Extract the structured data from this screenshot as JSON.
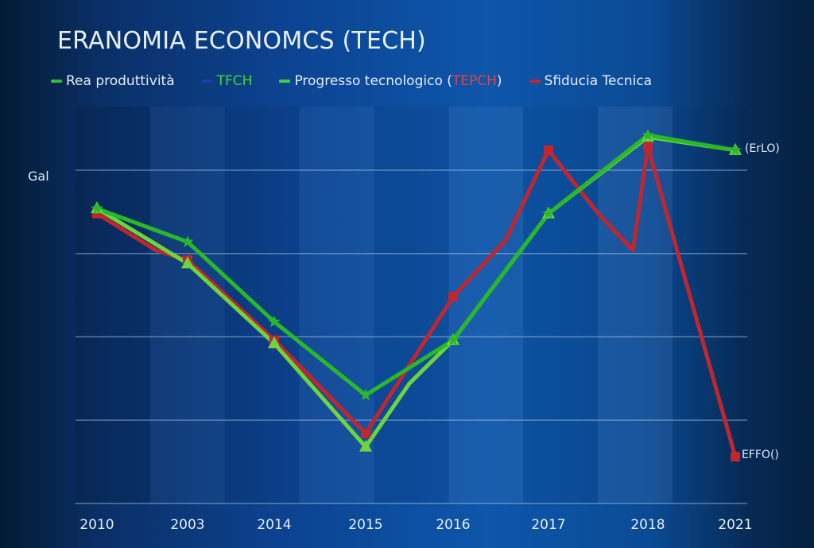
{
  "chart_data": {
    "type": "line",
    "title": "ERANOMIA ECONOMCS (TECH)",
    "xlabel": "",
    "ylabel": "Gal",
    "categories": [
      "2010",
      "2003",
      "2014",
      "2015",
      "2016",
      "2017",
      "2018",
      "2021"
    ],
    "ylim": [
      0,
      100
    ],
    "yticks": [
      0,
      25,
      50,
      75,
      100
    ],
    "grid": true,
    "legend_position": "top-left",
    "legend": [
      {
        "label": "Rea produttività",
        "color": "#2fbf2f"
      },
      {
        "label": "TFCH",
        "color": "#1a3fa8",
        "text_color": "#46d53a"
      },
      {
        "label": "Progresso tecnologico",
        "suffix_paren": "(",
        "suffix_red": "TEPCH",
        "suffix_close": ")",
        "color": "#3ccf3a"
      },
      {
        "label": "Sfiducia Tecnica",
        "color": "#c0262e"
      }
    ],
    "series": [
      {
        "name": "Rea produttività",
        "color": "#6fd43c",
        "marker": "triangle",
        "points": [
          [
            0,
            88.5
          ],
          [
            1,
            72
          ],
          [
            2,
            48
          ],
          [
            3,
            17
          ],
          [
            3.5,
            36
          ],
          [
            4,
            49
          ],
          [
            5,
            87
          ],
          [
            6,
            110
          ],
          [
            7,
            106
          ]
        ]
      },
      {
        "name": "Progresso tecnologico",
        "color": "#28b82a",
        "marker": "star",
        "points": [
          [
            0,
            88.5
          ],
          [
            1,
            78.5
          ],
          [
            2,
            54.5
          ],
          [
            3,
            32.5
          ],
          [
            4,
            49
          ],
          [
            5,
            87
          ],
          [
            6,
            110.5
          ],
          [
            7,
            106
          ]
        ]
      },
      {
        "name": "Sfiducia Tecnica",
        "color": "#c0262e",
        "marker": "square",
        "points": [
          [
            0,
            87
          ],
          [
            0.65,
            76
          ],
          [
            1,
            73
          ],
          [
            2,
            49
          ],
          [
            3,
            21
          ],
          [
            4,
            62
          ],
          [
            4.55,
            79
          ],
          [
            5,
            106
          ],
          [
            5.5,
            87
          ],
          [
            5.85,
            76
          ],
          [
            6,
            107
          ],
          [
            7,
            14
          ]
        ]
      }
    ],
    "annotations": [
      {
        "text": "(ErLO)",
        "series": "Progresso tecnologico",
        "at": "2021"
      },
      {
        "text": "EFFO()",
        "series": "Sfiducia Tecnica",
        "at": "2021"
      }
    ]
  }
}
